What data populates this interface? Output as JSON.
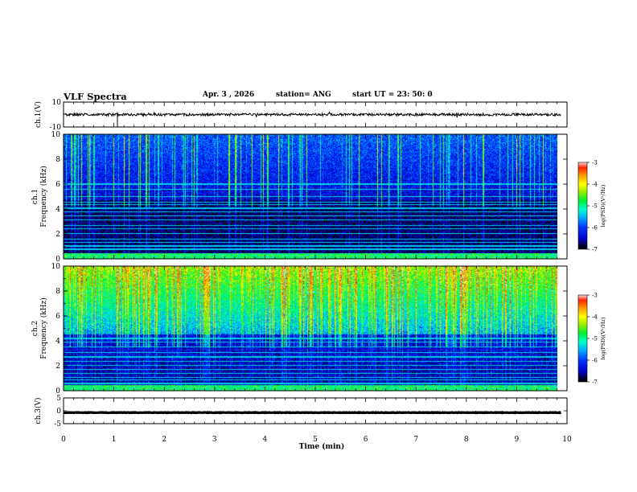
{
  "header": {
    "title": "VLF Spectra",
    "date": "Apr. 3  , 2026",
    "station": "station= ANG",
    "start_ut": "start  UT  =   23: 50: 0"
  },
  "chart_data": [
    {
      "type": "line",
      "panel": "ch1-waveform",
      "ylabel": "ch.1(V)",
      "ylim": [
        -10,
        10
      ],
      "y_ticks": [
        "10",
        "-10"
      ],
      "xlim": [
        0,
        10
      ],
      "baseline": 0,
      "noise_amplitude": 1
    },
    {
      "type": "heatmap",
      "panel": "ch1-spectrogram",
      "ylabel_line1": "ch.1",
      "ylabel_line2": "Frequency (kHz)",
      "ylim": [
        0,
        10
      ],
      "y_ticks": [
        "0",
        "2",
        "4",
        "6",
        "8",
        "10"
      ],
      "x_extent_min": 9.82,
      "colorbar": {
        "label": "log(PSD)(V²/Hz)",
        "range": [
          -7,
          -3
        ],
        "ticks": [
          "-3",
          "-4",
          "-5",
          "-6",
          "-7"
        ]
      },
      "narrowband_lines_khz": [
        0.3,
        0.75,
        1.0,
        1.3,
        1.55,
        2.0,
        2.4,
        2.65,
        3.1,
        3.45,
        3.75,
        4.05,
        4.35,
        4.55,
        5.0,
        5.6,
        6.0
      ],
      "description_levels": "quiet background near -6.5 below 4.5 kHz, sferic broadband bursts reaching -4 above 5 kHz"
    },
    {
      "type": "heatmap",
      "panel": "ch2-spectrogram",
      "ylabel_line1": "ch.2",
      "ylabel_line2": "Frequency (kHz)",
      "ylim": [
        0,
        10
      ],
      "y_ticks": [
        "0",
        "2",
        "4",
        "6",
        "8",
        "10"
      ],
      "x_extent_min": 9.82,
      "colorbar": {
        "label": "log(PSD)(V²/Hz)",
        "range": [
          -7,
          -3
        ],
        "ticks": [
          "-3",
          "-4",
          "-5",
          "-6",
          "-7"
        ]
      },
      "narrowband_lines_khz": [
        0.25,
        0.55,
        0.85,
        1.05,
        1.35,
        1.7,
        2.0,
        2.35,
        2.7,
        3.05,
        3.5,
        3.9,
        4.2
      ],
      "description_levels": "strong emission -5 to -3.5 above 5 kHz, quieter -6.5 below 4 kHz"
    },
    {
      "type": "line",
      "panel": "ch3-waveform",
      "ylabel": "ch.3(V)",
      "ylim": [
        -5,
        5
      ],
      "y_ticks": [
        "5",
        "0",
        "-5"
      ],
      "xlim": [
        0,
        10
      ],
      "baseline": -0.7,
      "noise_amplitude": 0.15
    }
  ],
  "xaxis": {
    "label": "Time  (min)",
    "ticks": [
      "0",
      "1",
      "2",
      "3",
      "4",
      "5",
      "6",
      "7",
      "8",
      "9",
      "10"
    ],
    "range": [
      0,
      10
    ]
  }
}
